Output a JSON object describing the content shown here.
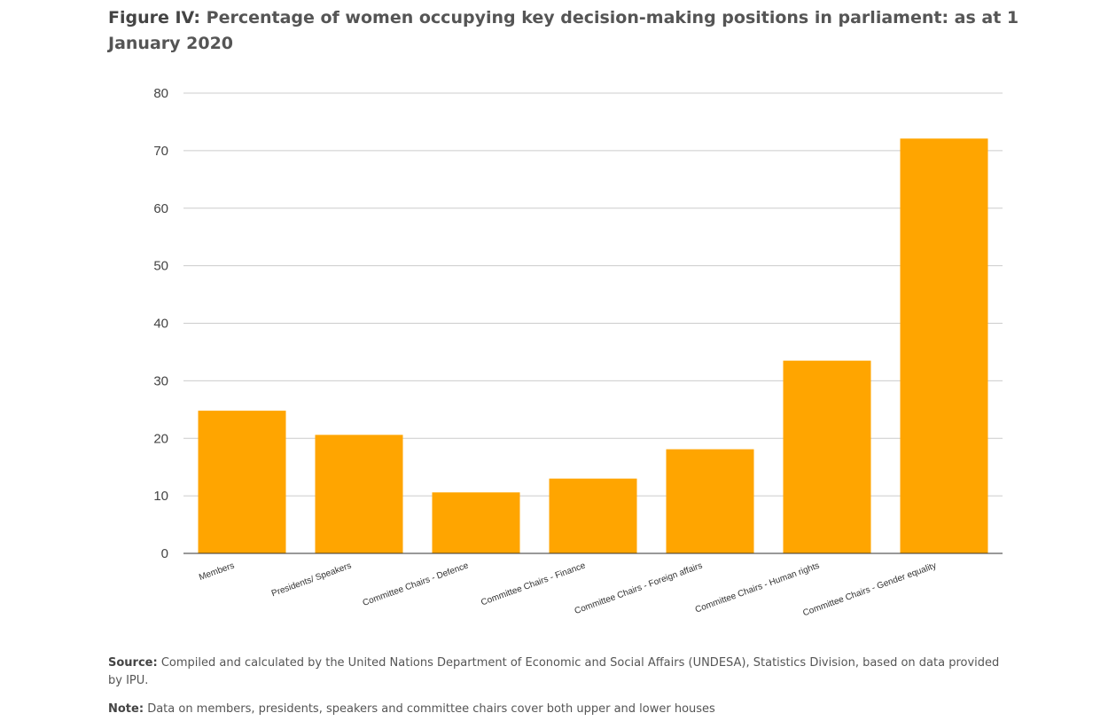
{
  "figure": {
    "label": "Figure IV:",
    "title": "Percentage of women occupying key decision-making positions in parliament: as at 1 January 2020"
  },
  "chart_data": {
    "type": "bar",
    "categories": [
      "Members",
      "Presidents/ Speakers",
      "Committee Chairs - Defence",
      "Committee Chairs - Finance",
      "Committee Chairs - Foreign affairs",
      "Committee Chairs - Human rights",
      "Committee Chairs - Gender equality"
    ],
    "values": [
      24.8,
      20.6,
      10.6,
      13.0,
      18.1,
      33.5,
      72.1
    ],
    "ylim": [
      0,
      80
    ],
    "yticks": [
      0,
      10,
      20,
      30,
      40,
      50,
      60,
      70,
      80
    ],
    "grid": true,
    "legend": "none",
    "bar_color": "#FFA500"
  },
  "notes": {
    "source_label": "Source:",
    "source_text": "Compiled and calculated by the United Nations Department of Economic and Social Affairs (UNDESA), Statistics Division, based on data provided by IPU.",
    "note_label": "Note:",
    "note_text": "Data on members, presidents, speakers and committee chairs cover both upper and lower houses"
  }
}
